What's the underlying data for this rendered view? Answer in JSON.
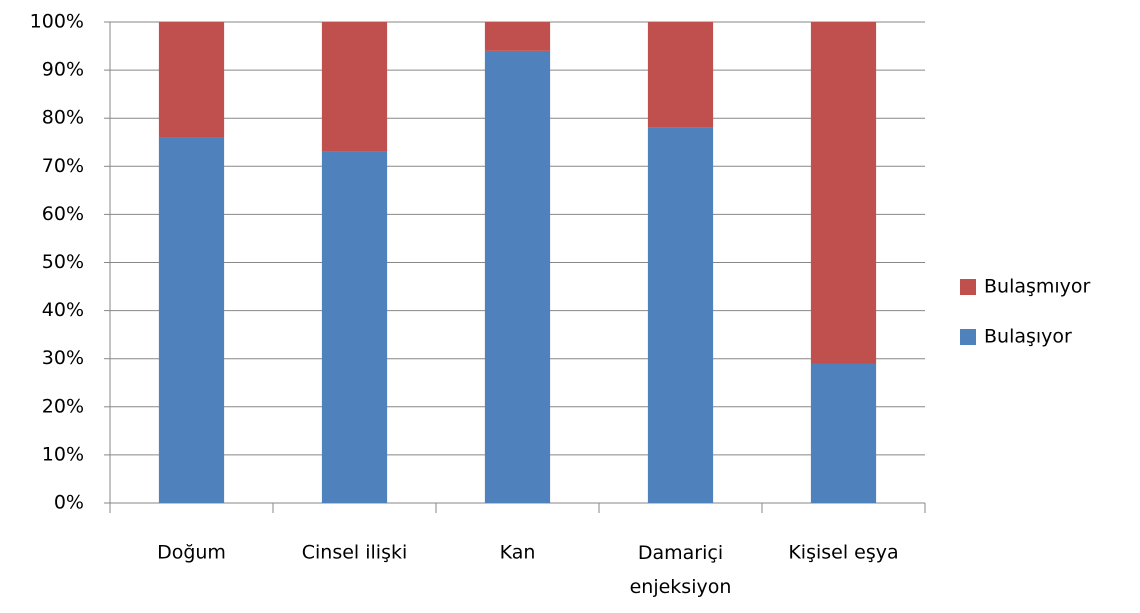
{
  "chart_data": {
    "type": "stacked_bar",
    "categories": [
      "Doğum",
      "Cinsel ilişki",
      "Kan",
      "Damariçi enjeksiyon",
      "Kişisel eşya"
    ],
    "series": [
      {
        "name": "Bulaşıyor",
        "color": "#4f81bd",
        "values": [
          76,
          73,
          94,
          78,
          29
        ]
      },
      {
        "name": "Bulaşmıyor",
        "color": "#c0504d",
        "values": [
          24,
          27,
          6,
          22,
          71
        ]
      }
    ],
    "ylim": [
      0,
      100
    ],
    "yticks": [
      {
        "value": 0,
        "label": "0%"
      },
      {
        "value": 10,
        "label": "10%"
      },
      {
        "value": 20,
        "label": "20%"
      },
      {
        "value": 30,
        "label": "30%"
      },
      {
        "value": 40,
        "label": "40%"
      },
      {
        "value": 50,
        "label": "50%"
      },
      {
        "value": 60,
        "label": "60%"
      },
      {
        "value": 70,
        "label": "70%"
      },
      {
        "value": 80,
        "label": "80%"
      },
      {
        "value": 90,
        "label": "90%"
      },
      {
        "value": 100,
        "label": "100%"
      }
    ],
    "grid": true,
    "legend": "right"
  }
}
